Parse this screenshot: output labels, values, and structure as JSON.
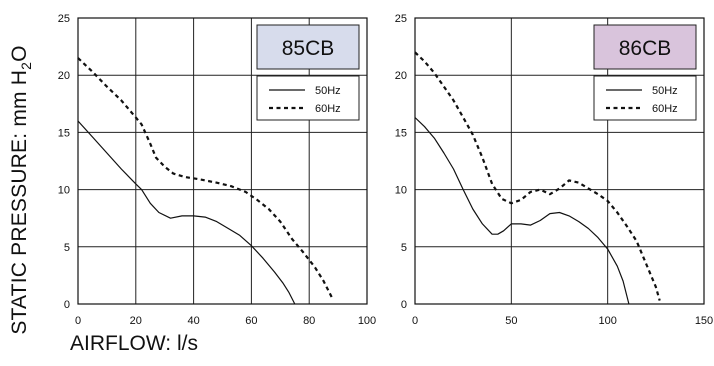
{
  "ylabel": {
    "text": "STATIC PRESSURE: mm H",
    "sub": "2",
    "tail": "O"
  },
  "xlabel": "AIRFLOW: l/s",
  "chart_data": [
    {
      "type": "line",
      "title": "85CB",
      "title_bg": "#d7dcec",
      "xlim": [
        0,
        100
      ],
      "ylim": [
        0,
        25
      ],
      "xticks": [
        0,
        20,
        40,
        60,
        80,
        100
      ],
      "yticks": [
        0,
        5,
        10,
        15,
        20,
        25
      ],
      "grid": true,
      "legend_position": "top-right",
      "series": [
        {
          "name": "50Hz",
          "style": "solid",
          "points": [
            [
              0,
              16
            ],
            [
              5,
              14.6
            ],
            [
              10,
              13.2
            ],
            [
              15,
              11.8
            ],
            [
              20,
              10.5
            ],
            [
              22,
              10
            ],
            [
              25,
              8.8
            ],
            [
              28,
              8
            ],
            [
              32,
              7.5
            ],
            [
              36,
              7.7
            ],
            [
              40,
              7.7
            ],
            [
              44,
              7.6
            ],
            [
              48,
              7.2
            ],
            [
              52,
              6.6
            ],
            [
              56,
              6
            ],
            [
              60,
              5.1
            ],
            [
              64,
              4
            ],
            [
              68,
              2.8
            ],
            [
              71,
              1.8
            ],
            [
              73,
              1
            ],
            [
              75,
              0
            ]
          ]
        },
        {
          "name": "60Hz",
          "style": "dashed",
          "points": [
            [
              0,
              21.5
            ],
            [
              5,
              20.3
            ],
            [
              10,
              19
            ],
            [
              15,
              17.8
            ],
            [
              20,
              16.3
            ],
            [
              22,
              15.7
            ],
            [
              25,
              14
            ],
            [
              27,
              12.8
            ],
            [
              30,
              12
            ],
            [
              33,
              11.4
            ],
            [
              37,
              11.1
            ],
            [
              42,
              10.9
            ],
            [
              48,
              10.6
            ],
            [
              53,
              10.3
            ],
            [
              58,
              9.8
            ],
            [
              62,
              9.1
            ],
            [
              66,
              8.3
            ],
            [
              70,
              7.2
            ],
            [
              74,
              5.7
            ],
            [
              78,
              4.5
            ],
            [
              82,
              3.2
            ],
            [
              85,
              2
            ],
            [
              88,
              0.5
            ]
          ]
        }
      ]
    },
    {
      "type": "line",
      "title": "86CB",
      "title_bg": "#d9c4dc",
      "xlim": [
        0,
        150
      ],
      "ylim": [
        0,
        25
      ],
      "xticks": [
        0,
        50,
        100,
        150
      ],
      "yticks": [
        0,
        5,
        10,
        15,
        20,
        25
      ],
      "grid": true,
      "legend_position": "top-right",
      "series": [
        {
          "name": "50Hz",
          "style": "solid",
          "points": [
            [
              0,
              16.3
            ],
            [
              5,
              15.5
            ],
            [
              10,
              14.5
            ],
            [
              15,
              13.2
            ],
            [
              20,
              11.8
            ],
            [
              25,
              10
            ],
            [
              30,
              8.3
            ],
            [
              35,
              7
            ],
            [
              40,
              6.1
            ],
            [
              43,
              6.1
            ],
            [
              46,
              6.4
            ],
            [
              50,
              7
            ],
            [
              55,
              7
            ],
            [
              60,
              6.9
            ],
            [
              65,
              7.3
            ],
            [
              70,
              7.9
            ],
            [
              75,
              8
            ],
            [
              80,
              7.7
            ],
            [
              85,
              7.2
            ],
            [
              90,
              6.6
            ],
            [
              95,
              5.8
            ],
            [
              100,
              4.8
            ],
            [
              105,
              3.3
            ],
            [
              108,
              2
            ],
            [
              111,
              0
            ]
          ]
        },
        {
          "name": "60Hz",
          "style": "dashed",
          "points": [
            [
              0,
              22
            ],
            [
              5,
              21.2
            ],
            [
              10,
              20.2
            ],
            [
              15,
              19
            ],
            [
              20,
              17.8
            ],
            [
              25,
              16.3
            ],
            [
              30,
              14.8
            ],
            [
              35,
              12.8
            ],
            [
              40,
              10.5
            ],
            [
              45,
              9.2
            ],
            [
              50,
              8.8
            ],
            [
              55,
              9.1
            ],
            [
              60,
              9.8
            ],
            [
              65,
              10
            ],
            [
              70,
              9.6
            ],
            [
              75,
              10.1
            ],
            [
              80,
              10.8
            ],
            [
              85,
              10.6
            ],
            [
              90,
              10.1
            ],
            [
              95,
              9.6
            ],
            [
              100,
              9
            ],
            [
              105,
              8
            ],
            [
              110,
              6.8
            ],
            [
              115,
              5.5
            ],
            [
              120,
              3.5
            ],
            [
              125,
              1.5
            ],
            [
              127,
              0.3
            ]
          ]
        }
      ]
    }
  ]
}
